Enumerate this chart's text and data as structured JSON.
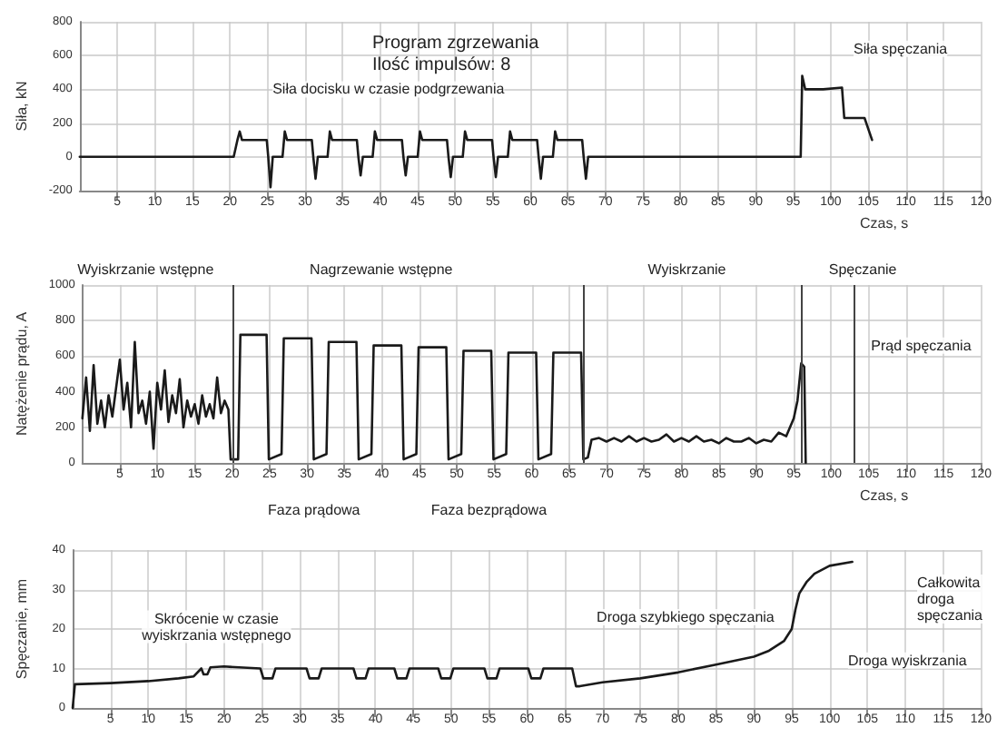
{
  "chart_data": [
    {
      "type": "line",
      "title": "Program zgrzewania",
      "subtitle": "Ilość impulsów: 8",
      "ylabel": "Siła, kN",
      "xlabel": "Czas, s",
      "xlim": [
        0,
        120
      ],
      "xticks": [
        5,
        10,
        15,
        20,
        25,
        30,
        35,
        40,
        45,
        50,
        55,
        60,
        65,
        70,
        75,
        80,
        85,
        90,
        95,
        100,
        105,
        110,
        115,
        120
      ],
      "ylim": [
        -200,
        800
      ],
      "yticks": [
        -200,
        0,
        200,
        400,
        600,
        800
      ],
      "grid": true,
      "marker": "none",
      "line_style": "solid",
      "series": [
        {
          "color": "#1a1a1a",
          "x": [
            0,
            20.5,
            21,
            21.3,
            21.6,
            24.9,
            25.1,
            25.4,
            25.7,
            27,
            27.3,
            27.6,
            30.9,
            31.1,
            31.4,
            31.7,
            33,
            33.3,
            33.6,
            36.9,
            37.1,
            37.4,
            37.7,
            39,
            39.3,
            39.6,
            42.9,
            43.1,
            43.4,
            43.7,
            45,
            45.3,
            45.6,
            48.9,
            49.1,
            49.4,
            49.7,
            51,
            51.3,
            51.6,
            54.9,
            55.1,
            55.4,
            55.7,
            57,
            57.3,
            57.6,
            60.9,
            61.1,
            61.4,
            61.7,
            63,
            63.3,
            63.6,
            66.9,
            67.1,
            67.4,
            67.7,
            96,
            96.2,
            96.6,
            99,
            101.5,
            101.8,
            104.5,
            105.5
          ],
          "values": [
            0,
            0,
            100,
            150,
            100,
            100,
            0,
            -180,
            0,
            0,
            150,
            100,
            100,
            0,
            -130,
            0,
            0,
            150,
            100,
            100,
            0,
            -110,
            0,
            0,
            150,
            100,
            100,
            0,
            -110,
            0,
            0,
            150,
            100,
            100,
            0,
            -120,
            0,
            0,
            150,
            100,
            100,
            0,
            -120,
            0,
            0,
            150,
            100,
            100,
            0,
            -130,
            0,
            0,
            150,
            100,
            100,
            0,
            -130,
            0,
            0,
            480,
            400,
            400,
            410,
            230,
            230,
            100
          ]
        }
      ],
      "annotations": [
        "Siła docisku w czasie podgrzewania",
        "Siła spęczania"
      ]
    },
    {
      "type": "line",
      "ylabel": "Natężenie prądu, A",
      "xlabel": "Czas, s",
      "xlim": [
        0,
        120
      ],
      "xticks": [
        5,
        10,
        15,
        20,
        25,
        30,
        35,
        40,
        45,
        50,
        55,
        60,
        65,
        70,
        75,
        80,
        85,
        90,
        95,
        100,
        105,
        110,
        115,
        120
      ],
      "ylim": [
        0,
        1000
      ],
      "yticks": [
        0,
        200,
        400,
        600,
        800,
        1000
      ],
      "grid": true,
      "marker": "none",
      "line_style": "solid",
      "series": [
        {
          "color": "#1a1a1a",
          "x": [
            0,
            0.5,
            1,
            1.5,
            2,
            2.5,
            3,
            3.5,
            4,
            4.5,
            5,
            5.5,
            6,
            6.5,
            7,
            7.5,
            8,
            8.5,
            9,
            9.5,
            10,
            10.5,
            11,
            11.5,
            12,
            12.5,
            13,
            13.5,
            14,
            14.5,
            15,
            15.5,
            16,
            16.5,
            17,
            17.5,
            18,
            18.5,
            19,
            19.5,
            19.8,
            20.8,
            21.1,
            24.6,
            24.9,
            26.6,
            26.9,
            30.6,
            30.9,
            32.6,
            32.9,
            36.6,
            36.9,
            38.6,
            38.9,
            42.6,
            42.9,
            44.6,
            44.9,
            48.6,
            48.9,
            50.6,
            50.9,
            54.6,
            54.9,
            56.6,
            56.9,
            60.6,
            60.9,
            62.6,
            62.9,
            66.6,
            66.9,
            67.5,
            68,
            69,
            70,
            71,
            72,
            73,
            74,
            75,
            76,
            77,
            78,
            79,
            80,
            81,
            82,
            83,
            84,
            85,
            86,
            87,
            88,
            89,
            90,
            91,
            92,
            93,
            94,
            95,
            95.5,
            96,
            96.4,
            96.6
          ],
          "values": [
            250,
            480,
            180,
            550,
            220,
            350,
            200,
            380,
            260,
            420,
            580,
            300,
            450,
            200,
            680,
            280,
            350,
            220,
            400,
            80,
            450,
            300,
            520,
            230,
            380,
            280,
            470,
            200,
            350,
            260,
            330,
            220,
            380,
            260,
            330,
            250,
            480,
            280,
            350,
            300,
            20,
            20,
            720,
            720,
            20,
            50,
            700,
            700,
            20,
            50,
            680,
            680,
            20,
            50,
            660,
            660,
            20,
            50,
            650,
            650,
            20,
            50,
            630,
            630,
            20,
            50,
            620,
            620,
            20,
            50,
            620,
            620,
            20,
            30,
            130,
            140,
            120,
            140,
            120,
            150,
            120,
            140,
            120,
            130,
            160,
            120,
            140,
            120,
            150,
            120,
            130,
            110,
            140,
            120,
            120,
            140,
            110,
            130,
            120,
            170,
            150,
            250,
            350,
            560,
            540,
            0
          ]
        }
      ],
      "ref_lines": [
        {
          "axis": "x",
          "value": 20
        },
        {
          "axis": "x",
          "value": 67
        },
        {
          "axis": "x",
          "value": 96
        },
        {
          "axis": "x",
          "value": 103
        }
      ],
      "annotations": [
        "Wyiskrzanie wstępne",
        "Nagrzewanie wstępne",
        "Wyiskrzanie",
        "Spęczanie",
        "Prąd spęczania",
        "Faza prądowa",
        "Faza bezprądowa"
      ]
    },
    {
      "type": "line",
      "ylabel": "Spęczanie, mm",
      "xlim": [
        0,
        120
      ],
      "xticks": [
        5,
        10,
        15,
        20,
        25,
        30,
        35,
        40,
        45,
        50,
        55,
        60,
        65,
        70,
        75,
        80,
        85,
        90,
        95,
        100,
        105,
        110,
        115,
        120
      ],
      "ylim": [
        0,
        40
      ],
      "yticks": [
        0,
        10,
        20,
        30,
        40
      ],
      "grid": true,
      "marker": "none",
      "line_style": "solid",
      "series": [
        {
          "color": "#1a1a1a",
          "x": [
            0,
            0.3,
            5,
            10,
            14,
            16,
            17,
            17.3,
            17.8,
            18.2,
            20,
            24.8,
            25.2,
            26.4,
            26.8,
            30.9,
            31.3,
            32.5,
            32.9,
            37.1,
            37.5,
            38.7,
            39.1,
            42.5,
            42.9,
            44.1,
            44.5,
            48.3,
            48.7,
            49.9,
            50.3,
            54.4,
            54.8,
            56,
            56.4,
            60.2,
            60.6,
            61.8,
            62.2,
            66,
            66.5,
            67,
            70,
            75,
            80,
            85,
            90,
            92,
            94,
            95,
            95.5,
            96,
            97,
            98,
            100,
            103
          ],
          "values": [
            0,
            6,
            6.3,
            6.8,
            7.5,
            8,
            10,
            8.5,
            8.5,
            10.3,
            10.5,
            10,
            7.5,
            7.5,
            10,
            10,
            7.5,
            7.5,
            10,
            10,
            7.5,
            7.5,
            10,
            10,
            7.5,
            7.5,
            10,
            10,
            7.5,
            7.5,
            10,
            10,
            7.5,
            7.5,
            10,
            10,
            7.5,
            7.5,
            10,
            10,
            5.5,
            5.5,
            6.5,
            7.5,
            9,
            11,
            13,
            14.5,
            17,
            20,
            25,
            29,
            32,
            34,
            36,
            37
          ]
        }
      ],
      "annotations": [
        {
          "text": "Skrócenie w czasie\nwyiskrzania wstępnego",
          "x": 19,
          "y": 10
        },
        "Droga szybkiego spęczania",
        "Całkowita\ndroga\nspęczania",
        "Droga wyiskrzania"
      ]
    }
  ]
}
